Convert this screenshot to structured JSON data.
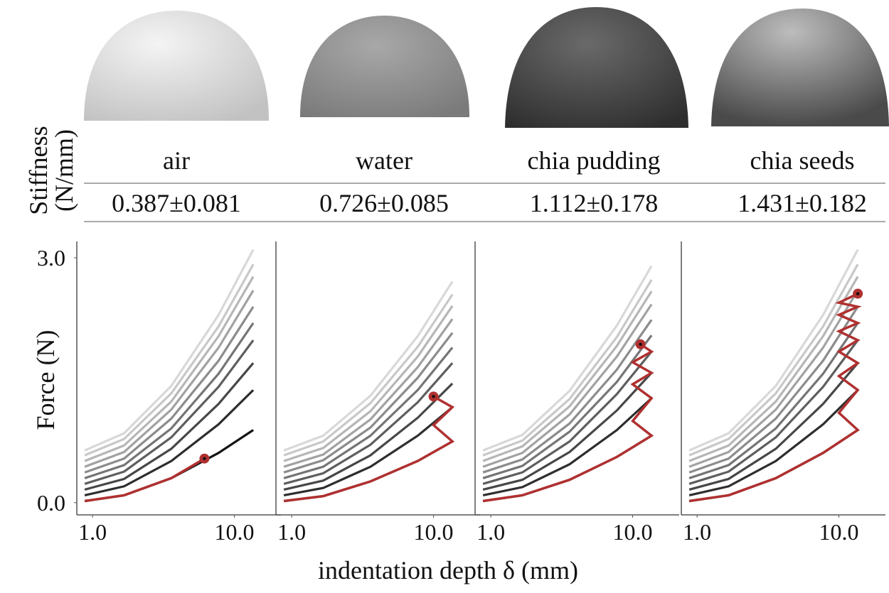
{
  "row_label": "Stiffness (N/mm)",
  "x_label": "indentation depth δ (mm)",
  "chart_data": [
    {
      "type": "line",
      "title": "air",
      "subtitle": "0.387±0.081",
      "y_label": "Force (N)",
      "x": [
        0.5,
        3,
        6,
        9,
        11.2
      ],
      "xlim": [
        0,
        11.6
      ],
      "ylim": [
        -0.15,
        3.2
      ],
      "xticks": [
        {
          "value": 1,
          "label": "1.0"
        },
        {
          "value": 10,
          "label": "10.0"
        }
      ],
      "yticks": [
        {
          "value": 0,
          "label": "0.0"
        },
        {
          "value": 3,
          "label": "3.0"
        }
      ],
      "series": [
        {
          "color": "#d8d8d8",
          "values": [
            0.64,
            0.85,
            1.43,
            2.3,
            3.1
          ]
        },
        {
          "color": "#c8c8c8",
          "values": [
            0.58,
            0.78,
            1.34,
            2.16,
            2.92
          ]
        },
        {
          "color": "#b6b6b6",
          "values": [
            0.51,
            0.7,
            1.24,
            2.04,
            2.77
          ]
        },
        {
          "color": "#a2a2a2",
          "values": [
            0.44,
            0.62,
            1.14,
            1.9,
            2.6
          ]
        },
        {
          "color": "#8c8c8c",
          "values": [
            0.37,
            0.54,
            1.03,
            1.74,
            2.4
          ]
        },
        {
          "color": "#757575",
          "values": [
            0.3,
            0.46,
            0.91,
            1.58,
            2.2
          ]
        },
        {
          "color": "#5e5e5e",
          "values": [
            0.23,
            0.38,
            0.8,
            1.42,
            1.99
          ]
        },
        {
          "color": "#474747",
          "values": [
            0.16,
            0.29,
            0.66,
            1.21,
            1.71
          ]
        },
        {
          "color": "#2e2e2e",
          "values": [
            0.09,
            0.2,
            0.51,
            0.96,
            1.38
          ]
        },
        {
          "color": "#151515",
          "values": [
            0.02,
            0.09,
            0.3,
            0.61,
            0.89
          ]
        },
        {
          "color": "#b03030",
          "end_marker": true,
          "x": [
            0.5,
            3,
            6,
            8.1
          ],
          "values": [
            0.02,
            0.09,
            0.3,
            0.54
          ]
        }
      ]
    },
    {
      "type": "line",
      "title": "water",
      "subtitle": "0.726±0.085",
      "x": [
        0.5,
        3,
        6,
        9,
        11.2
      ],
      "xlim": [
        0,
        11.6
      ],
      "ylim": [
        -0.15,
        3.2
      ],
      "xticks": [
        {
          "value": 1,
          "label": "1.0"
        },
        {
          "value": 10,
          "label": "10.0"
        }
      ],
      "series": [
        {
          "color": "#d8d8d8",
          "values": [
            0.64,
            0.82,
            1.31,
            2.04,
            2.71
          ]
        },
        {
          "color": "#c8c8c8",
          "values": [
            0.58,
            0.75,
            1.22,
            1.91,
            2.55
          ]
        },
        {
          "color": "#b6b6b6",
          "values": [
            0.51,
            0.67,
            1.12,
            1.79,
            2.41
          ]
        },
        {
          "color": "#a2a2a2",
          "values": [
            0.44,
            0.59,
            1.02,
            1.66,
            2.25
          ]
        },
        {
          "color": "#8c8c8c",
          "values": [
            0.37,
            0.52,
            0.92,
            1.53,
            2.08
          ]
        },
        {
          "color": "#757575",
          "values": [
            0.3,
            0.44,
            0.82,
            1.38,
            1.9
          ]
        },
        {
          "color": "#5e5e5e",
          "values": [
            0.23,
            0.36,
            0.71,
            1.23,
            1.71
          ]
        },
        {
          "color": "#474747",
          "values": [
            0.16,
            0.27,
            0.58,
            1.04,
            1.46
          ]
        },
        {
          "color": "#2e2e2e",
          "values": [
            0.09,
            0.18,
            0.44,
            0.82,
            1.17
          ]
        },
        {
          "color": "#151515",
          "values": [
            0.02,
            0.08,
            0.26,
            0.51,
            0.75
          ]
        },
        {
          "color": "#b03030",
          "end_marker": true,
          "x": [
            0.5,
            3,
            6,
            9,
            11.2,
            10,
            11.2,
            10
          ],
          "values": [
            0.02,
            0.08,
            0.26,
            0.51,
            0.75,
            0.95,
            1.17,
            1.3
          ]
        }
      ]
    },
    {
      "type": "line",
      "title": "chia pudding",
      "subtitle": "1.112±0.178",
      "x": [
        0.5,
        3,
        6,
        9,
        11.2
      ],
      "xlim": [
        0,
        11.6
      ],
      "ylim": [
        -0.15,
        3.2
      ],
      "xticks": [
        {
          "value": 1,
          "label": "1.0"
        },
        {
          "value": 10,
          "label": "10.0"
        }
      ],
      "series": [
        {
          "color": "#d8d8d8",
          "values": [
            0.64,
            0.83,
            1.37,
            2.17,
            2.9
          ]
        },
        {
          "color": "#c8c8c8",
          "values": [
            0.58,
            0.76,
            1.27,
            2.03,
            2.73
          ]
        },
        {
          "color": "#b6b6b6",
          "values": [
            0.51,
            0.69,
            1.18,
            1.92,
            2.59
          ]
        },
        {
          "color": "#a2a2a2",
          "values": [
            0.44,
            0.61,
            1.08,
            1.79,
            2.43
          ]
        },
        {
          "color": "#8c8c8c",
          "values": [
            0.37,
            0.53,
            0.97,
            1.63,
            2.24
          ]
        },
        {
          "color": "#757575",
          "values": [
            0.3,
            0.45,
            0.87,
            1.48,
            2.05
          ]
        },
        {
          "color": "#5e5e5e",
          "values": [
            0.23,
            0.37,
            0.75,
            1.33,
            1.85
          ]
        },
        {
          "color": "#474747",
          "values": [
            0.16,
            0.28,
            0.62,
            1.13,
            1.59
          ]
        },
        {
          "color": "#2e2e2e",
          "values": [
            0.09,
            0.19,
            0.47,
            0.89,
            1.28
          ]
        },
        {
          "color": "#151515",
          "values": [
            0.02,
            0.09,
            0.28,
            0.56,
            0.82
          ]
        },
        {
          "color": "#b03030",
          "end_marker": true,
          "x": [
            0.5,
            3,
            6,
            9,
            11.2,
            10,
            11.2,
            10,
            11.2,
            10,
            11.2,
            10.5
          ],
          "values": [
            0.02,
            0.09,
            0.28,
            0.56,
            0.82,
            1.0,
            1.28,
            1.45,
            1.59,
            1.72,
            1.85,
            1.94
          ]
        }
      ]
    },
    {
      "type": "line",
      "title": "chia seeds",
      "subtitle": "1.431±0.182",
      "x": [
        0.5,
        3,
        6,
        9,
        11.2
      ],
      "xlim": [
        0,
        11.6
      ],
      "ylim": [
        -0.15,
        3.2
      ],
      "xticks": [
        {
          "value": 1,
          "label": "1.0"
        },
        {
          "value": 10,
          "label": "10.0"
        }
      ],
      "series": [
        {
          "color": "#d8d8d8",
          "values": [
            0.64,
            0.85,
            1.43,
            2.3,
            3.1
          ]
        },
        {
          "color": "#c8c8c8",
          "values": [
            0.58,
            0.78,
            1.34,
            2.16,
            2.92
          ]
        },
        {
          "color": "#b6b6b6",
          "values": [
            0.51,
            0.7,
            1.24,
            2.04,
            2.77
          ]
        },
        {
          "color": "#a2a2a2",
          "values": [
            0.44,
            0.62,
            1.14,
            1.9,
            2.6
          ]
        },
        {
          "color": "#8c8c8c",
          "values": [
            0.37,
            0.54,
            1.03,
            1.74,
            2.4
          ]
        },
        {
          "color": "#757575",
          "values": [
            0.3,
            0.46,
            0.91,
            1.58,
            2.2
          ]
        },
        {
          "color": "#5e5e5e",
          "values": [
            0.23,
            0.38,
            0.8,
            1.42,
            1.99
          ]
        },
        {
          "color": "#474747",
          "values": [
            0.16,
            0.29,
            0.66,
            1.21,
            1.71
          ]
        },
        {
          "color": "#2e2e2e",
          "values": [
            0.09,
            0.2,
            0.51,
            0.96,
            1.38
          ]
        },
        {
          "color": "#151515",
          "values": [
            0.02,
            0.09,
            0.3,
            0.61,
            0.89
          ]
        },
        {
          "color": "#b03030",
          "end_marker": true,
          "x": [
            0.5,
            3,
            6,
            9,
            11.2,
            10,
            11.2,
            10,
            11.2,
            10,
            11.2,
            10,
            11.2,
            10,
            11.2,
            10,
            11.2
          ],
          "values": [
            0.02,
            0.09,
            0.3,
            0.61,
            0.89,
            1.1,
            1.38,
            1.55,
            1.71,
            1.85,
            1.99,
            2.1,
            2.2,
            2.3,
            2.4,
            2.45,
            2.56
          ]
        }
      ]
    }
  ]
}
